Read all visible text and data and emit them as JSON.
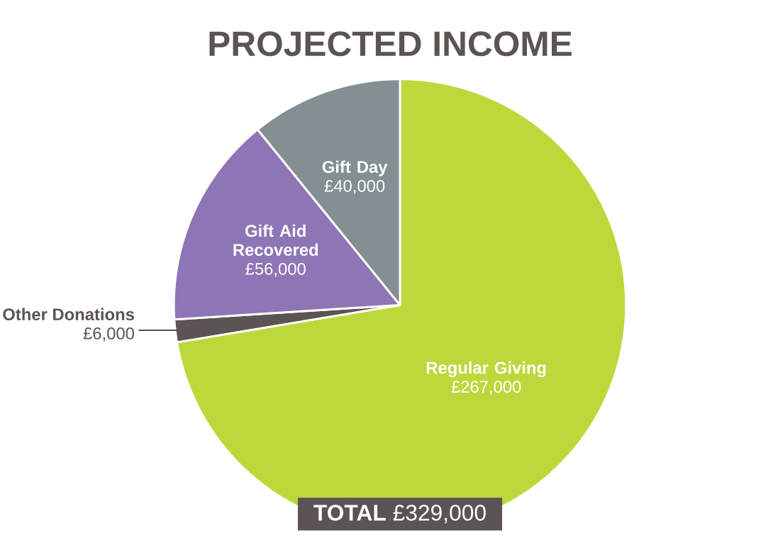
{
  "chart_data": {
    "type": "pie",
    "title": "PROJECTED INCOME",
    "categories": [
      "Regular Giving",
      "Other Donations",
      "Gift Aid Recovered",
      "Gift Day"
    ],
    "values": [
      267000,
      6000,
      56000,
      40000
    ],
    "value_labels": [
      "£267,000",
      "£6,000",
      "£56,000",
      "£40,000"
    ],
    "colors": [
      "#bcd93c",
      "#5c5353",
      "#8e75b5",
      "#838f92"
    ],
    "annotations": [
      "**TOTAL** £329,000"
    ]
  }
}
